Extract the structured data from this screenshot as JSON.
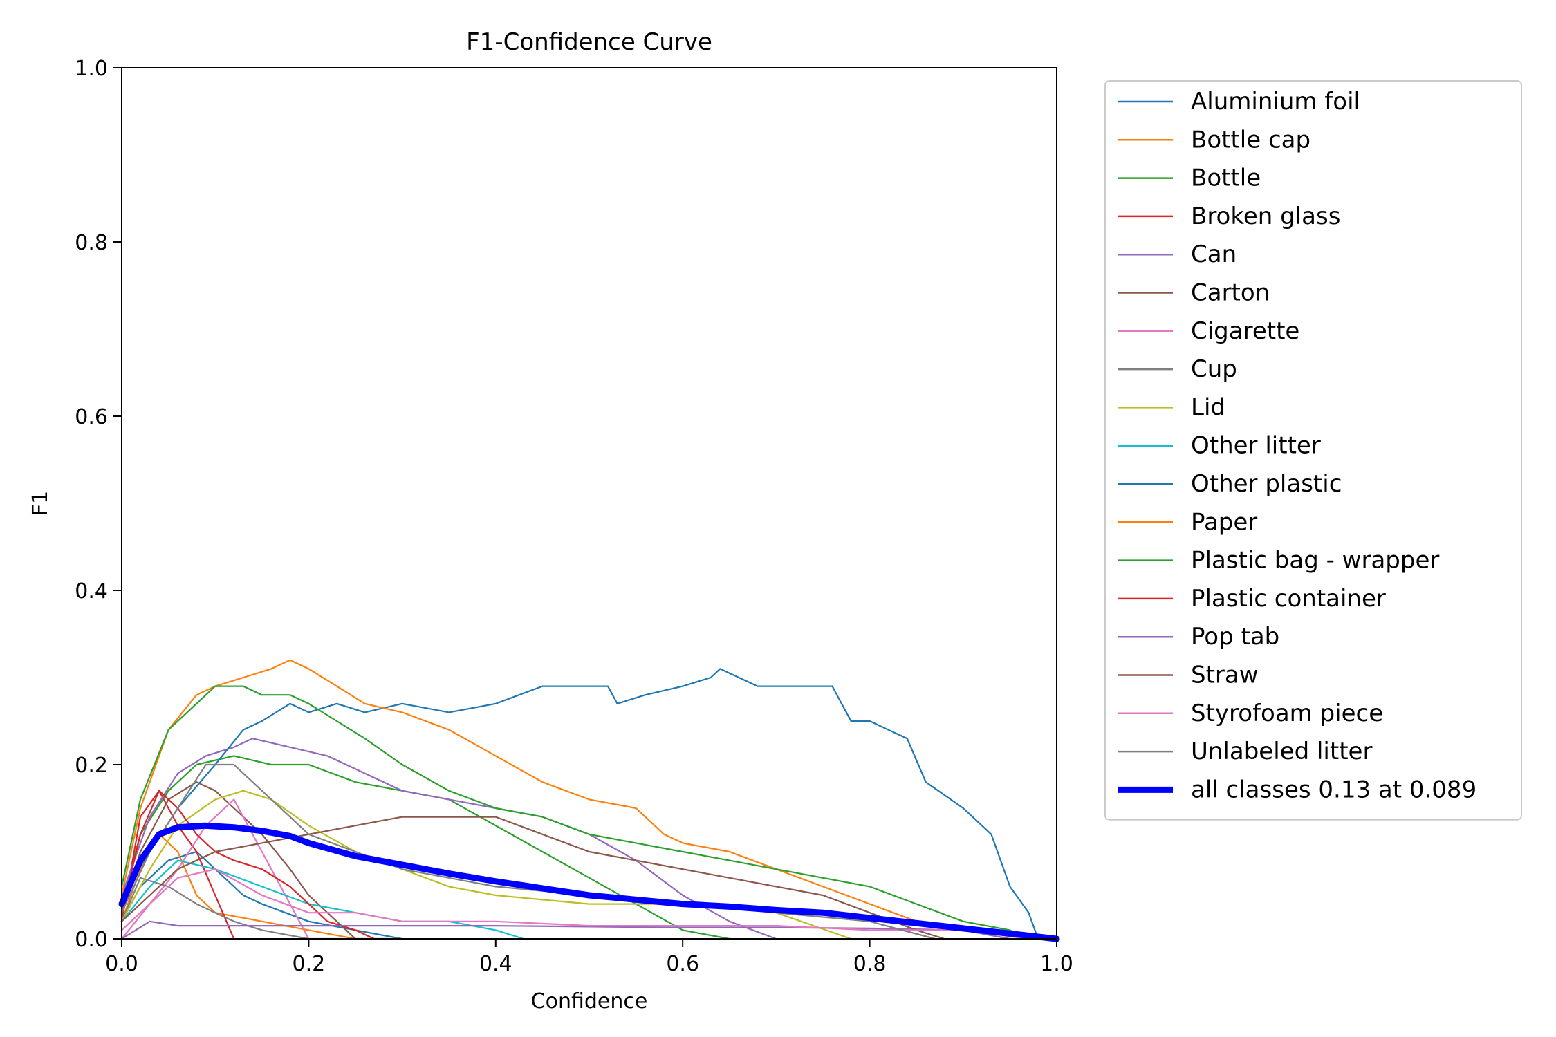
{
  "chart_data": {
    "type": "line",
    "title": "F1-Confidence Curve",
    "xlabel": "Confidence",
    "ylabel": "F1",
    "xlim": [
      0.0,
      1.0
    ],
    "ylim": [
      0.0,
      1.0
    ],
    "xticks": [
      "0.0",
      "0.2",
      "0.4",
      "0.6",
      "0.8",
      "1.0"
    ],
    "yticks": [
      "0.0",
      "0.2",
      "0.4",
      "0.6",
      "0.8",
      "1.0"
    ],
    "grid": false,
    "legend_position": "outside-right",
    "series": [
      {
        "name": "Aluminium foil",
        "color": "#1f77b4",
        "x": [
          0.0,
          0.02,
          0.05,
          0.08,
          0.1,
          0.13,
          0.15,
          0.2,
          0.25,
          0.3
        ],
        "y": [
          0.02,
          0.06,
          0.09,
          0.1,
          0.08,
          0.05,
          0.04,
          0.02,
          0.01,
          0.0
        ]
      },
      {
        "name": "Bottle cap",
        "color": "#ff7f0e",
        "x": [
          0.0,
          0.02,
          0.04,
          0.06,
          0.08,
          0.1,
          0.15,
          0.2,
          0.25,
          0.3
        ],
        "y": [
          0.02,
          0.08,
          0.12,
          0.1,
          0.05,
          0.03,
          0.02,
          0.01,
          0.0,
          0.0
        ]
      },
      {
        "name": "Bottle",
        "color": "#2ca02c",
        "x": [
          0.0,
          0.02,
          0.05,
          0.08,
          0.12,
          0.16,
          0.2,
          0.25,
          0.3,
          0.35,
          0.4,
          0.5,
          0.55,
          0.6,
          0.65
        ],
        "y": [
          0.04,
          0.12,
          0.17,
          0.2,
          0.21,
          0.2,
          0.2,
          0.18,
          0.17,
          0.16,
          0.13,
          0.07,
          0.04,
          0.01,
          0.0
        ]
      },
      {
        "name": "Broken glass",
        "color": "#d62728",
        "x": [
          0.0,
          0.02,
          0.04,
          0.06,
          0.08,
          0.1,
          0.12
        ],
        "y": [
          0.02,
          0.14,
          0.17,
          0.13,
          0.1,
          0.05,
          0.0
        ]
      },
      {
        "name": "Can",
        "color": "#9467bd",
        "x": [
          0.0,
          0.03,
          0.06,
          0.09,
          0.12,
          0.14,
          0.18,
          0.22,
          0.26,
          0.3,
          0.35,
          0.4,
          0.45,
          0.5,
          0.55,
          0.6,
          0.65,
          0.7
        ],
        "y": [
          0.05,
          0.14,
          0.19,
          0.21,
          0.22,
          0.23,
          0.22,
          0.21,
          0.19,
          0.17,
          0.16,
          0.15,
          0.14,
          0.12,
          0.09,
          0.05,
          0.02,
          0.0
        ]
      },
      {
        "name": "Carton",
        "color": "#8c564b",
        "x": [
          0.0,
          0.02,
          0.05,
          0.08,
          0.1,
          0.12,
          0.15,
          0.18,
          0.2,
          0.25
        ],
        "y": [
          0.03,
          0.1,
          0.16,
          0.18,
          0.17,
          0.15,
          0.12,
          0.08,
          0.05,
          0.0
        ]
      },
      {
        "name": "Cigarette",
        "color": "#e377c2",
        "x": [
          0.0,
          0.03,
          0.06,
          0.09,
          0.12,
          0.15,
          0.18,
          0.2
        ],
        "y": [
          0.0,
          0.04,
          0.08,
          0.13,
          0.16,
          0.1,
          0.04,
          0.0
        ]
      },
      {
        "name": "Cup",
        "color": "#7f7f7f",
        "x": [
          0.0,
          0.02,
          0.05,
          0.08,
          0.1,
          0.12,
          0.15,
          0.2,
          0.25,
          0.3
        ],
        "y": [
          0.02,
          0.07,
          0.06,
          0.04,
          0.03,
          0.02,
          0.01,
          0.0,
          0.0,
          0.0
        ]
      },
      {
        "name": "Lid",
        "color": "#bcbd22",
        "x": [
          0.0,
          0.03,
          0.06,
          0.1,
          0.13,
          0.16,
          0.2,
          0.25,
          0.3,
          0.35,
          0.4,
          0.5,
          0.6,
          0.7,
          0.78
        ],
        "y": [
          0.02,
          0.08,
          0.13,
          0.16,
          0.17,
          0.16,
          0.13,
          0.1,
          0.08,
          0.06,
          0.05,
          0.04,
          0.04,
          0.03,
          0.0
        ]
      },
      {
        "name": "Other litter",
        "color": "#17becf",
        "x": [
          0.0,
          0.03,
          0.06,
          0.1,
          0.15,
          0.2,
          0.25,
          0.3,
          0.35,
          0.4,
          0.43
        ],
        "y": [
          0.02,
          0.06,
          0.09,
          0.08,
          0.06,
          0.04,
          0.03,
          0.02,
          0.02,
          0.01,
          0.0
        ]
      },
      {
        "name": "Other plastic",
        "color": "#1f77b4",
        "x": [
          0.0,
          0.03,
          0.06,
          0.1,
          0.13,
          0.15,
          0.18,
          0.2,
          0.23,
          0.26,
          0.3,
          0.35,
          0.4,
          0.45,
          0.52,
          0.53,
          0.56,
          0.6,
          0.63,
          0.64,
          0.68,
          0.72,
          0.76,
          0.77,
          0.78,
          0.8,
          0.84,
          0.86,
          0.9,
          0.93,
          0.94,
          0.95,
          0.97,
          0.98
        ],
        "y": [
          0.05,
          0.1,
          0.15,
          0.2,
          0.24,
          0.25,
          0.27,
          0.26,
          0.27,
          0.26,
          0.27,
          0.26,
          0.27,
          0.29,
          0.29,
          0.27,
          0.28,
          0.29,
          0.3,
          0.31,
          0.29,
          0.29,
          0.29,
          0.27,
          0.25,
          0.25,
          0.23,
          0.18,
          0.15,
          0.12,
          0.09,
          0.06,
          0.03,
          0.0
        ]
      },
      {
        "name": "Paper",
        "color": "#ff7f0e",
        "x": [
          0.0,
          0.02,
          0.05,
          0.08,
          0.1,
          0.13,
          0.16,
          0.18,
          0.2,
          0.23,
          0.26,
          0.3,
          0.35,
          0.4,
          0.45,
          0.5,
          0.55,
          0.58,
          0.6,
          0.65,
          0.7,
          0.75,
          0.8,
          0.85,
          0.9,
          0.95
        ],
        "y": [
          0.05,
          0.15,
          0.24,
          0.28,
          0.29,
          0.3,
          0.31,
          0.32,
          0.31,
          0.29,
          0.27,
          0.26,
          0.24,
          0.21,
          0.18,
          0.16,
          0.15,
          0.12,
          0.11,
          0.1,
          0.08,
          0.06,
          0.04,
          0.02,
          0.01,
          0.0
        ]
      },
      {
        "name": "Plastic bag - wrapper",
        "color": "#2ca02c",
        "x": [
          0.0,
          0.02,
          0.05,
          0.08,
          0.1,
          0.13,
          0.15,
          0.18,
          0.2,
          0.23,
          0.26,
          0.3,
          0.35,
          0.4,
          0.45,
          0.5,
          0.55,
          0.6,
          0.65,
          0.7,
          0.75,
          0.8,
          0.85,
          0.9,
          0.95,
          0.97
        ],
        "y": [
          0.06,
          0.16,
          0.24,
          0.27,
          0.29,
          0.29,
          0.28,
          0.28,
          0.27,
          0.25,
          0.23,
          0.2,
          0.17,
          0.15,
          0.14,
          0.12,
          0.11,
          0.1,
          0.09,
          0.08,
          0.07,
          0.06,
          0.04,
          0.02,
          0.01,
          0.0
        ]
      },
      {
        "name": "Plastic container",
        "color": "#d62728",
        "x": [
          0.0,
          0.02,
          0.04,
          0.06,
          0.08,
          0.1,
          0.12,
          0.15,
          0.18,
          0.2,
          0.22,
          0.25,
          0.27
        ],
        "y": [
          0.03,
          0.12,
          0.17,
          0.15,
          0.12,
          0.1,
          0.09,
          0.08,
          0.06,
          0.04,
          0.02,
          0.01,
          0.0
        ]
      },
      {
        "name": "Pop tab",
        "color": "#9467bd",
        "x": [
          0.0,
          0.03,
          0.06,
          0.1,
          0.2,
          0.3,
          0.4,
          0.5,
          0.6,
          0.7,
          0.8,
          0.9,
          0.95
        ],
        "y": [
          0.0,
          0.02,
          0.015,
          0.015,
          0.015,
          0.015,
          0.015,
          0.014,
          0.013,
          0.013,
          0.012,
          0.01,
          0.0
        ]
      },
      {
        "name": "Straw",
        "color": "#8c564b",
        "x": [
          0.0,
          0.03,
          0.06,
          0.1,
          0.15,
          0.2,
          0.25,
          0.3,
          0.35,
          0.4,
          0.45,
          0.5,
          0.55,
          0.6,
          0.65,
          0.7,
          0.75,
          0.8,
          0.85,
          0.88
        ],
        "y": [
          0.02,
          0.05,
          0.08,
          0.1,
          0.11,
          0.12,
          0.13,
          0.14,
          0.14,
          0.14,
          0.12,
          0.1,
          0.09,
          0.08,
          0.07,
          0.06,
          0.05,
          0.03,
          0.01,
          0.0
        ]
      },
      {
        "name": "Styrofoam piece",
        "color": "#e377c2",
        "x": [
          0.0,
          0.03,
          0.06,
          0.1,
          0.15,
          0.2,
          0.25,
          0.3,
          0.4,
          0.5,
          0.6,
          0.7,
          0.8,
          0.9,
          0.97
        ],
        "y": [
          0.01,
          0.04,
          0.07,
          0.08,
          0.05,
          0.03,
          0.03,
          0.02,
          0.02,
          0.015,
          0.015,
          0.015,
          0.01,
          0.01,
          0.0
        ]
      },
      {
        "name": "Unlabeled litter",
        "color": "#7f7f7f",
        "x": [
          0.0,
          0.03,
          0.06,
          0.09,
          0.12,
          0.15,
          0.18,
          0.2,
          0.25,
          0.3,
          0.35,
          0.4,
          0.5,
          0.6,
          0.7,
          0.8,
          0.87
        ],
        "y": [
          0.03,
          0.1,
          0.15,
          0.2,
          0.2,
          0.17,
          0.14,
          0.12,
          0.1,
          0.08,
          0.07,
          0.06,
          0.05,
          0.04,
          0.03,
          0.02,
          0.0
        ]
      },
      {
        "name": "all classes 0.13 at 0.089",
        "color": "#0000ff",
        "bold": true,
        "x": [
          0.0,
          0.02,
          0.04,
          0.06,
          0.089,
          0.12,
          0.15,
          0.18,
          0.2,
          0.25,
          0.3,
          0.35,
          0.4,
          0.45,
          0.5,
          0.55,
          0.6,
          0.65,
          0.7,
          0.75,
          0.8,
          0.85,
          0.9,
          0.95,
          1.0
        ],
        "y": [
          0.04,
          0.09,
          0.12,
          0.128,
          0.13,
          0.128,
          0.124,
          0.118,
          0.11,
          0.095,
          0.085,
          0.075,
          0.066,
          0.058,
          0.05,
          0.045,
          0.04,
          0.037,
          0.033,
          0.03,
          0.024,
          0.018,
          0.012,
          0.006,
          0.0
        ]
      }
    ]
  }
}
